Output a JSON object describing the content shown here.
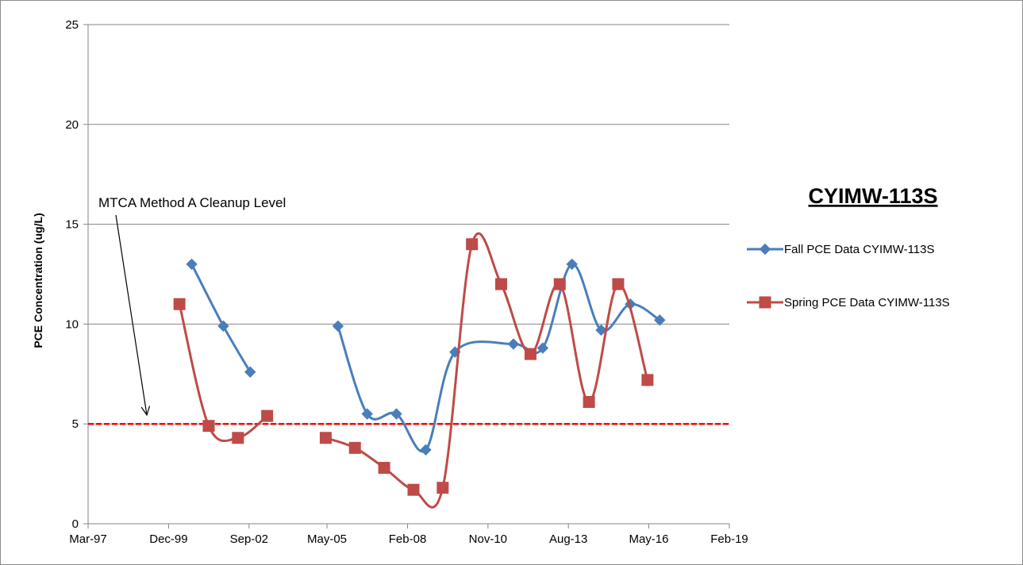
{
  "chart_data": {
    "type": "line",
    "title": "CYIMW-113S",
    "xlabel": "",
    "ylabel": "PCE Concentration (ug/L)",
    "ylim": [
      0,
      25
    ],
    "yticks": [
      0,
      5,
      10,
      15,
      20,
      25
    ],
    "xlim": [
      "1997-03-01",
      "2019-02-01"
    ],
    "xtick_labels": [
      "Mar-97",
      "Dec-99",
      "Sep-02",
      "May-05",
      "Feb-08",
      "Nov-10",
      "Aug-13",
      "May-16",
      "Feb-19"
    ],
    "xtick_dates": [
      "1997-03-01",
      "1999-12-01",
      "2002-09-01",
      "2005-05-01",
      "2008-02-01",
      "2010-11-01",
      "2013-08-01",
      "2016-05-01",
      "2019-02-01"
    ],
    "grid": "horizontal",
    "legend": "right",
    "series": [
      {
        "name": "Fall PCE Data CYIMW-113S",
        "color": "#4a7ebb",
        "marker": "diamond",
        "segments": [
          [
            {
              "x": "2000-09-15",
              "y": 13.0
            },
            {
              "x": "2001-10-15",
              "y": 9.9
            },
            {
              "x": "2002-09-15",
              "y": 7.6
            }
          ],
          [
            {
              "x": "2005-09-15",
              "y": 9.9
            },
            {
              "x": "2006-09-15",
              "y": 5.5
            },
            {
              "x": "2007-09-15",
              "y": 5.5
            },
            {
              "x": "2008-09-15",
              "y": 3.7
            },
            {
              "x": "2009-09-15",
              "y": 8.6
            },
            {
              "x": "2011-09-15",
              "y": 9.0
            },
            {
              "x": "2012-09-15",
              "y": 8.8
            },
            {
              "x": "2013-09-15",
              "y": 13.0
            },
            {
              "x": "2014-09-15",
              "y": 9.7
            },
            {
              "x": "2015-09-15",
              "y": 11.0
            },
            {
              "x": "2016-09-15",
              "y": 10.2
            }
          ]
        ]
      },
      {
        "name": "Spring PCE Data CYIMW-113S",
        "color": "#be4b48",
        "marker": "square",
        "segments": [
          [
            {
              "x": "2000-04-15",
              "y": 11.0
            },
            {
              "x": "2001-04-15",
              "y": 4.9
            },
            {
              "x": "2002-04-15",
              "y": 4.3
            },
            {
              "x": "2003-04-15",
              "y": 5.4
            }
          ],
          [
            {
              "x": "2005-04-15",
              "y": 4.3
            },
            {
              "x": "2006-04-15",
              "y": 3.8
            },
            {
              "x": "2007-04-15",
              "y": 2.8
            },
            {
              "x": "2008-04-15",
              "y": 1.7
            },
            {
              "x": "2009-04-15",
              "y": 1.8
            },
            {
              "x": "2010-04-15",
              "y": 14.0
            },
            {
              "x": "2011-04-15",
              "y": 12.0
            },
            {
              "x": "2012-04-15",
              "y": 8.5
            },
            {
              "x": "2013-04-15",
              "y": 12.0
            },
            {
              "x": "2014-04-15",
              "y": 6.1
            },
            {
              "x": "2015-04-15",
              "y": 12.0
            },
            {
              "x": "2016-04-15",
              "y": 7.2
            }
          ]
        ]
      }
    ],
    "reference_line": {
      "label": "MTCA Method A Cleanup Level",
      "y": 5,
      "color": "#ff0000",
      "style": "dashed"
    }
  }
}
